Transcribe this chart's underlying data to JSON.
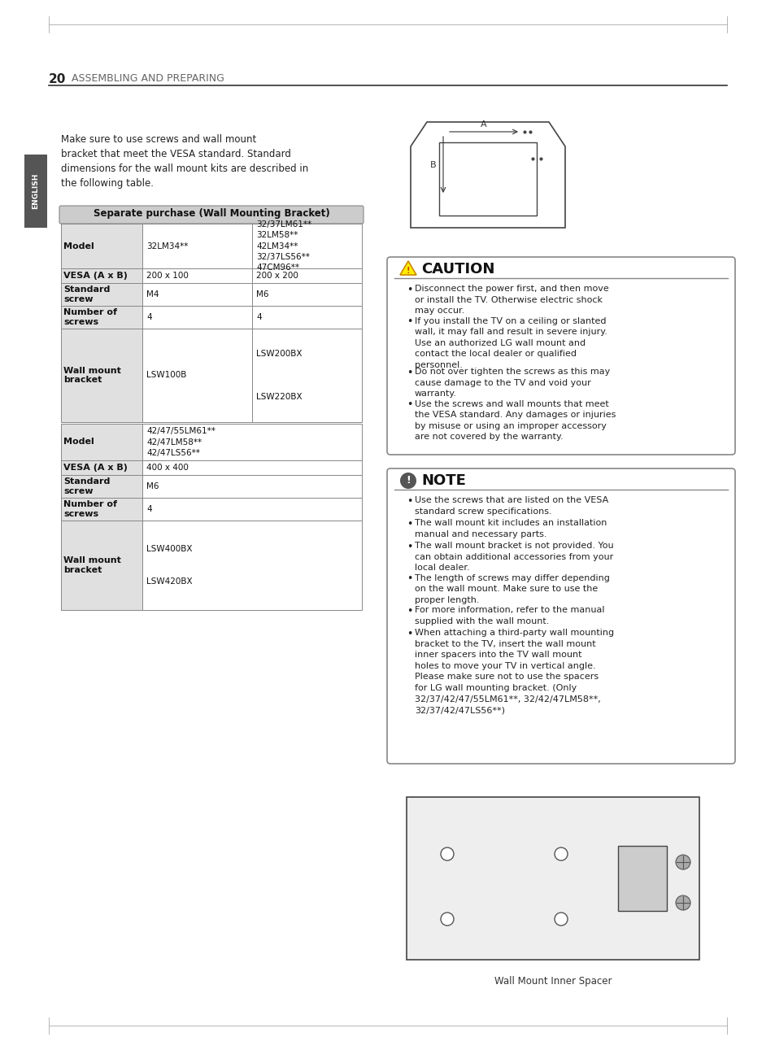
{
  "page_number": "20",
  "section_title": "ASSEMBLING AND PREPARING",
  "bg_color": "#ffffff",
  "intro_text": "Make sure to use screws and wall mount\nbracket that meet the VESA standard. Standard\ndimensions for the wall mount kits are described in\nthe following table.",
  "table_header": "Separate purchase (Wall Mounting Bracket)",
  "table_rows_top": [
    {
      "label": "Model",
      "col1": "32LM34**",
      "col2": "32/37LM61**\n32LM58**\n42LM34**\n32/37LS56**\n47CM96**"
    },
    {
      "label": "VESA (A x B)",
      "col1": "200 x 100",
      "col2": "200 x 200"
    },
    {
      "label": "Standard\nscrew",
      "col1": "M4",
      "col2": "M6"
    },
    {
      "label": "Number of\nscrews",
      "col1": "4",
      "col2": "4"
    },
    {
      "label": "Wall mount\nbracket",
      "col1": "LSW100B",
      "col2": "LSW200BX\n\n\n\nLSW220BX"
    }
  ],
  "table_rows_bottom": [
    {
      "label": "Model",
      "col1": "42/47/55LM61**\n42/47LM58**\n42/47LS56**",
      "col2": ""
    },
    {
      "label": "VESA (A x B)",
      "col1": "400 x 400",
      "col2": ""
    },
    {
      "label": "Standard\nscrew",
      "col1": "M6",
      "col2": ""
    },
    {
      "label": "Number of\nscrews",
      "col1": "4",
      "col2": ""
    },
    {
      "label": "Wall mount\nbracket",
      "col1": "LSW400BX\n\n\nLSW420BX",
      "col2": ""
    }
  ],
  "caution_title": "CAUTION",
  "caution_bullets": [
    "Disconnect the power first, and then move\nor install the TV. Otherwise electric shock\nmay occur.",
    "If you install the TV on a ceiling or slanted\nwall, it may fall and result in severe injury.\nUse an authorized LG wall mount and\ncontact the local dealer or qualified\npersonnel.",
    "Do not over tighten the screws as this may\ncause damage to the TV and void your\nwarranty.",
    "Use the screws and wall mounts that meet\nthe VESA standard. Any damages or injuries\nby misuse or using an improper accessory\nare not covered by the warranty."
  ],
  "note_title": "NOTE",
  "note_bullets": [
    "Use the screws that are listed on the VESA\nstandard screw specifications.",
    "The wall mount kit includes an installation\nmanual and necessary parts.",
    "The wall mount bracket is not provided. You\ncan obtain additional accessories from your\nlocal dealer.",
    "The length of screws may differ depending\non the wall mount. Make sure to use the\nproper length.",
    "For more information, refer to the manual\nsupplied with the wall mount.",
    "When attaching a third-party wall mounting\nbracket to the TV, insert the wall mount\ninner spacers into the TV wall mount\nholes to move your TV in vertical angle.\nPlease make sure not to use the spacers\nfor LG wall mounting bracket. (Only\n32/37/42/47/55LM61**, 32/42/47LM58**,\n32/37/42/47LS56**)"
  ],
  "wall_mount_caption": "Wall Mount Inner Spacer",
  "english_tab_color": "#555555",
  "table_header_bg": "#d0d0d0",
  "table_bold_label_bg": "#e8e8e8",
  "table_border_color": "#888888",
  "header_line_color": "#333333"
}
